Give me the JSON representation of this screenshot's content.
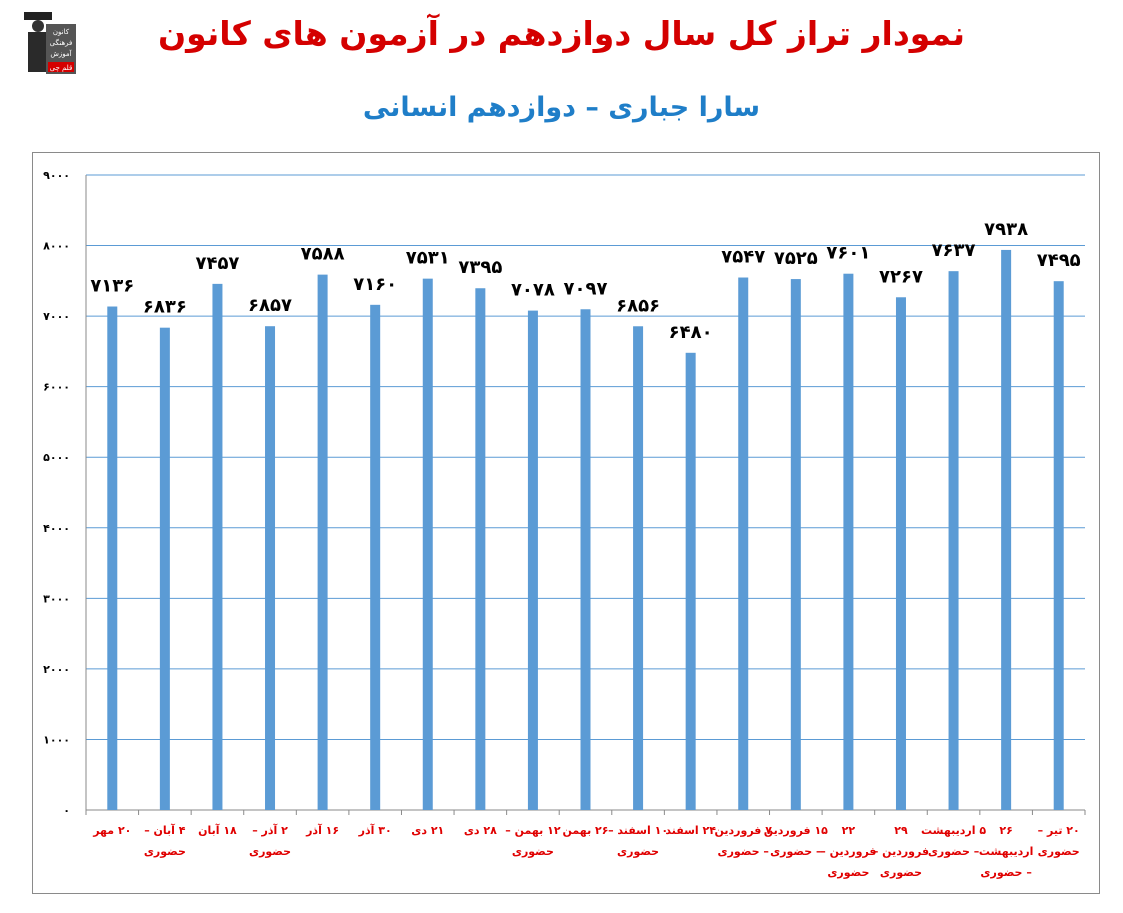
{
  "header": {
    "title": "نمودار تراز کل سال دوازدهم در آزمون های کانون",
    "subtitle": "سارا جباری – دوازدهم انسانی",
    "logo_lines": [
      "کانون",
      "فرهنگی",
      "آموزش",
      "قلم چی"
    ]
  },
  "colors": {
    "title": "#d40000",
    "subtitle": "#1f7ec8",
    "bar": "#5b9bd5",
    "gridline": "#5b9bd5",
    "xlabel": "#e00000"
  },
  "chart_data": {
    "type": "bar",
    "title": "",
    "xlabel": "",
    "ylabel": "",
    "ylim": [
      0,
      9000
    ],
    "yticks": [
      "۰",
      "۱۰۰۰",
      "۲۰۰۰",
      "۳۰۰۰",
      "۴۰۰۰",
      "۵۰۰۰",
      "۶۰۰۰",
      "۷۰۰۰",
      "۸۰۰۰",
      "۹۰۰۰"
    ],
    "grid": true,
    "categories": [
      [
        "۲۰ مهر"
      ],
      [
        "۴ آبان –",
        "حضوری"
      ],
      [
        "۱۸ آبان"
      ],
      [
        "۲ آذر –",
        "حضوری"
      ],
      [
        "۱۶ آذر"
      ],
      [
        "۳۰ آذر"
      ],
      [
        "۲۱ دی"
      ],
      [
        "۲۸ دی"
      ],
      [
        "۱۲ بهمن –",
        "حضوری"
      ],
      [
        "۲۶ بهمن"
      ],
      [
        "۱۰ اسفند –",
        "حضوری"
      ],
      [
        "۲۴ اسفند"
      ],
      [
        "۷ فروردین",
        "– حضوری"
      ],
      [
        "۱۵ فروردین",
        "– حضوری"
      ],
      [
        "۲۲",
        "فروردین –",
        "حضوری"
      ],
      [
        "۲۹",
        "فروردین –",
        "حضوری"
      ],
      [
        "۵ اردیبهشت",
        "– حضوری"
      ],
      [
        "۲۶",
        "اردیبهشت",
        "– حضوری"
      ],
      [
        "۲۰ تیر –",
        "حضوری"
      ]
    ],
    "values": [
      7136,
      6836,
      7457,
      6857,
      7588,
      7160,
      7531,
      7395,
      7078,
      7097,
      6856,
      6480,
      7547,
      7525,
      7601,
      7267,
      7637,
      7938,
      7495
    ],
    "value_labels": [
      "۷۱۳۶",
      "۶۸۳۶",
      "۷۴۵۷",
      "۶۸۵۷",
      "۷۵۸۸",
      "۷۱۶۰",
      "۷۵۳۱",
      "۷۳۹۵",
      "۷۰۷۸",
      "۷۰۹۷",
      "۶۸۵۶",
      "۶۴۸۰",
      "۷۵۴۷",
      "۷۵۲۵",
      "۷۶۰۱",
      "۷۲۶۷",
      "۷۶۳۷",
      "۷۹۳۸",
      "۷۴۹۵"
    ]
  }
}
